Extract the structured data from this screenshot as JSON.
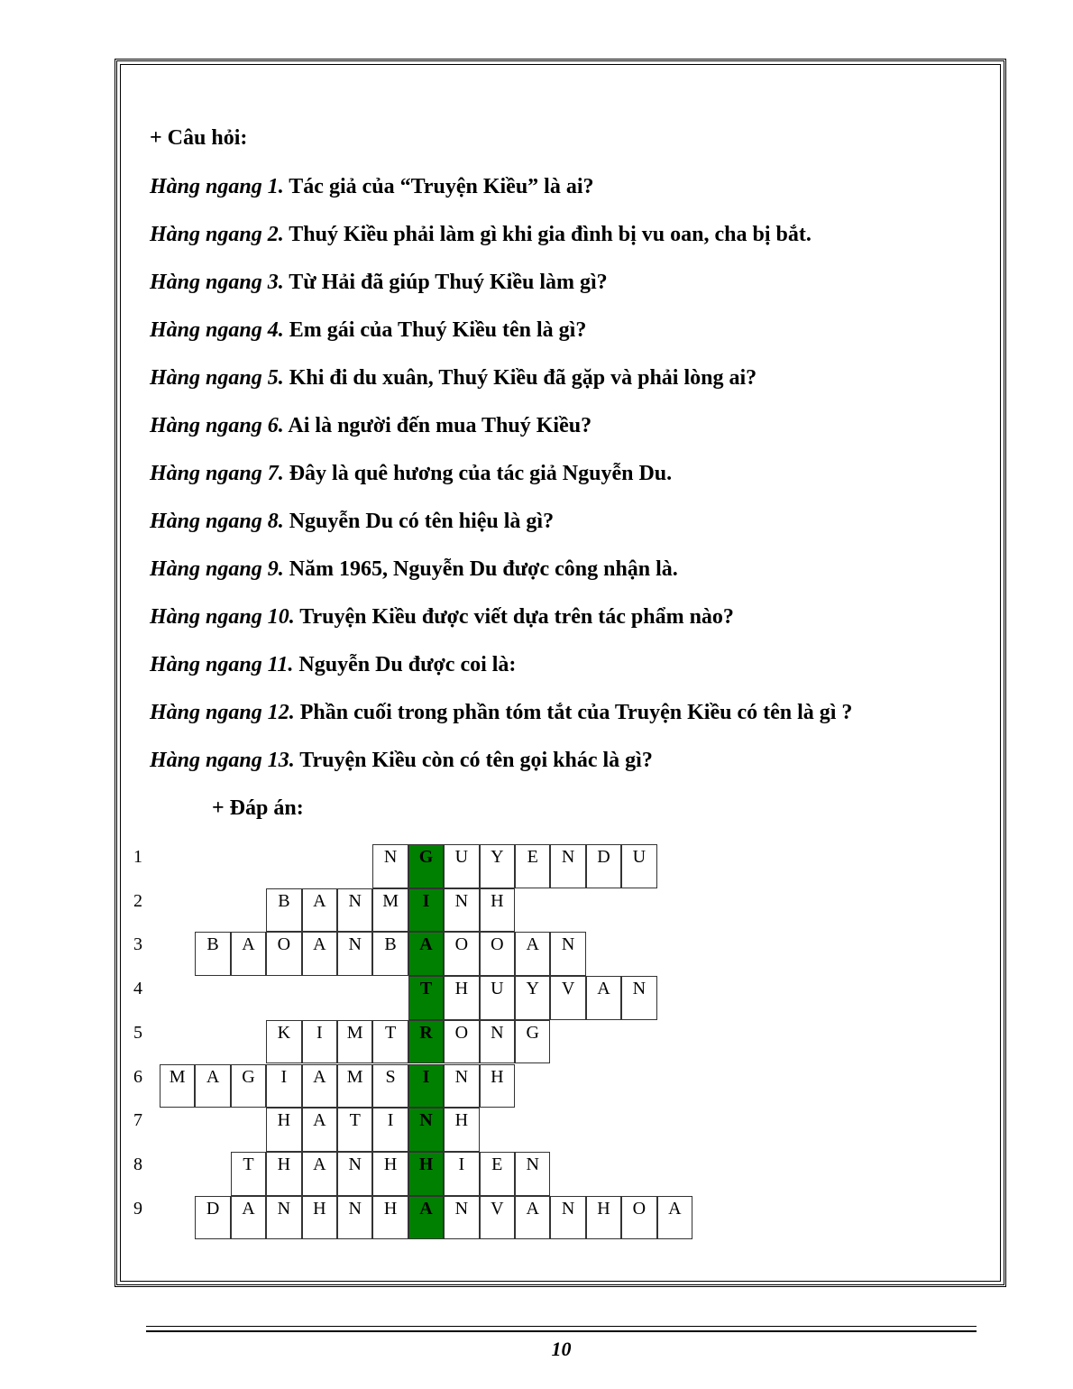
{
  "questions_heading": "+ Câu hỏi:",
  "questions": [
    {
      "label": "Hàng ngang 1.",
      "text": " Tác giả của “Truyện Kiều” là ai?"
    },
    {
      "label": "Hàng ngang 2.",
      "text": " Thuý Kiều phải làm gì khi gia đình bị vu oan, cha bị bắt."
    },
    {
      "label": "Hàng ngang 3.",
      "text": " Từ Hải đã giúp Thuý Kiều làm gì?"
    },
    {
      "label": "Hàng ngang 4.",
      "text": " Em gái của Thuý Kiều tên là gì?"
    },
    {
      "label": "Hàng ngang 5.",
      "text": " Khi đi du xuân, Thuý Kiều đã gặp và phải lòng ai?"
    },
    {
      "label": "Hàng ngang 6.",
      "text": " Ai là người đến mua Thuý Kiều?"
    },
    {
      "label": "Hàng ngang 7.",
      "text": " Đây là quê hương của tác giả Nguyễn Du."
    },
    {
      "label": "Hàng ngang 8.",
      "text": " Nguyễn Du có tên hiệu là gì?"
    },
    {
      "label": "Hàng ngang 9.",
      "text": " Năm 1965, Nguyễn Du được công nhận là."
    },
    {
      "label": "Hàng ngang 10.",
      "text": " Truyện Kiều được viết dựa trên tác phẩm nào?"
    },
    {
      "label": "Hàng ngang 11.",
      "text": " Nguyễn Du được coi là:"
    },
    {
      "label": "Hàng ngang 12.",
      "text": " Phần cuối trong phần tóm tắt của Truyện Kiều có tên là gì ?"
    },
    {
      "label": "Hàng ngang 13.",
      "text": " Truyện Kiều còn có tên gọi khác là gì?"
    }
  ],
  "answers_heading": "+ Đáp án:",
  "key_color": "#008000",
  "crossword": [
    {
      "num": "1",
      "word": "NGUYENDU",
      "key_index": 1
    },
    {
      "num": "2",
      "word": "BANMINH",
      "key_index": 4
    },
    {
      "num": "3",
      "word": "BAOANBAOOAN",
      "key_index": 6
    },
    {
      "num": "4",
      "word": "THUYVAN",
      "key_index": 0
    },
    {
      "num": "5",
      "word": "KIMTRONG",
      "key_index": 4
    },
    {
      "num": "6",
      "word": "MAGIAMSINH",
      "key_index": 7
    },
    {
      "num": "7",
      "word": "HATINH",
      "key_index": 4
    },
    {
      "num": "8",
      "word": "THANHHIEN",
      "key_index": 5
    },
    {
      "num": "9",
      "word": "DANHNHANVANHOA",
      "key_index": 6
    }
  ],
  "page_number": "10"
}
